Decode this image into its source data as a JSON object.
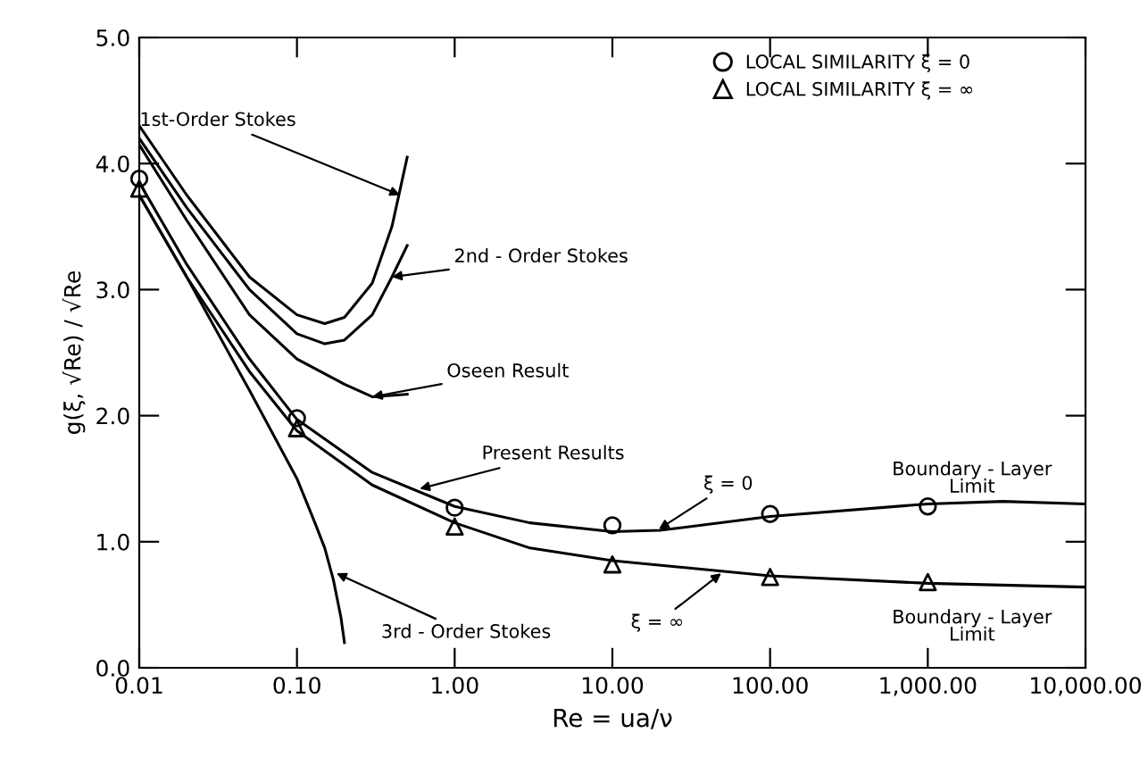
{
  "chart_data": {
    "type": "line",
    "xlabel": "Re = ua/ν",
    "ylabel": "g(ξ, √Re) / √Re",
    "log": "x",
    "xlim": [
      0.01,
      10000
    ],
    "ylim": [
      0,
      5
    ],
    "xticks": [
      {
        "value": 0.01,
        "label": "0.01"
      },
      {
        "value": 0.1,
        "label": "0.10"
      },
      {
        "value": 1,
        "label": "1.00"
      },
      {
        "value": 10,
        "label": "10.00"
      },
      {
        "value": 100,
        "label": "100.00"
      },
      {
        "value": 1000,
        "label": "1,000.00"
      },
      {
        "value": 10000,
        "label": "10,000.00"
      }
    ],
    "yticks": [
      {
        "value": 0,
        "label": "0.0"
      },
      {
        "value": 1,
        "label": "1.0"
      },
      {
        "value": 2,
        "label": "2.0"
      },
      {
        "value": 3,
        "label": "3.0"
      },
      {
        "value": 4,
        "label": "4.0"
      },
      {
        "value": 5,
        "label": "5.0"
      }
    ],
    "grid": false,
    "legend": "top right",
    "marker": "none",
    "line_style": "solid",
    "series": [
      {
        "name": "1st-Order Stokes",
        "color": "#000000",
        "x": [
          0.01,
          0.02,
          0.05,
          0.1,
          0.15,
          0.2,
          0.3,
          0.4,
          0.5
        ],
        "values": [
          4.3,
          3.75,
          3.1,
          2.8,
          2.73,
          2.78,
          3.05,
          3.5,
          4.05
        ]
      },
      {
        "name": "2nd - Order Stokes",
        "color": "#000000",
        "x": [
          0.01,
          0.02,
          0.05,
          0.1,
          0.15,
          0.2,
          0.3,
          0.4,
          0.5
        ],
        "values": [
          4.2,
          3.65,
          3.0,
          2.65,
          2.57,
          2.6,
          2.8,
          3.1,
          3.35
        ]
      },
      {
        "name": "Oseen Result",
        "color": "#000000",
        "x": [
          0.01,
          0.02,
          0.05,
          0.1,
          0.2,
          0.3,
          0.5
        ],
        "values": [
          4.15,
          3.55,
          2.8,
          2.45,
          2.25,
          2.15,
          2.17
        ]
      },
      {
        "name": "3rd - Order Stokes",
        "color": "#000000",
        "x": [
          0.01,
          0.02,
          0.05,
          0.1,
          0.13,
          0.15,
          0.17,
          0.19,
          0.2
        ],
        "values": [
          3.75,
          3.1,
          2.2,
          1.5,
          1.15,
          0.95,
          0.7,
          0.4,
          0.2
        ]
      },
      {
        "name": "ξ = 0",
        "color": "#000000",
        "x": [
          0.01,
          0.02,
          0.05,
          0.1,
          0.3,
          1,
          3,
          10,
          20,
          100,
          1000,
          3000,
          10000
        ],
        "values": [
          3.85,
          3.2,
          2.45,
          1.97,
          1.55,
          1.28,
          1.15,
          1.08,
          1.09,
          1.2,
          1.3,
          1.32,
          1.3
        ]
      },
      {
        "name": "ξ = ∞",
        "color": "#000000",
        "x": [
          0.01,
          0.02,
          0.05,
          0.1,
          0.3,
          1,
          3,
          10,
          100,
          1000,
          10000
        ],
        "values": [
          3.75,
          3.1,
          2.35,
          1.88,
          1.45,
          1.15,
          0.95,
          0.85,
          0.73,
          0.67,
          0.64
        ]
      },
      {
        "name": "LOCAL SIMILARITY ξ = 0",
        "type": "scatter",
        "marker": "circle",
        "color": "#000000",
        "x": [
          0.01,
          0.1,
          1,
          10,
          100,
          1000
        ],
        "values": [
          3.88,
          1.98,
          1.27,
          1.13,
          1.22,
          1.28
        ]
      },
      {
        "name": "LOCAL SIMILARITY ξ = ∞",
        "type": "scatter",
        "marker": "triangle",
        "color": "#000000",
        "x": [
          0.01,
          0.1,
          1,
          10,
          100,
          1000
        ],
        "values": [
          3.8,
          1.9,
          1.12,
          0.82,
          0.72,
          0.68
        ]
      }
    ],
    "annotations": [
      {
        "text": "Present Results",
        "x": 0.6,
        "y": 1.42
      },
      "Boundary - Layer\nLimit",
      "Boundary - Layer\nLimit"
    ]
  }
}
